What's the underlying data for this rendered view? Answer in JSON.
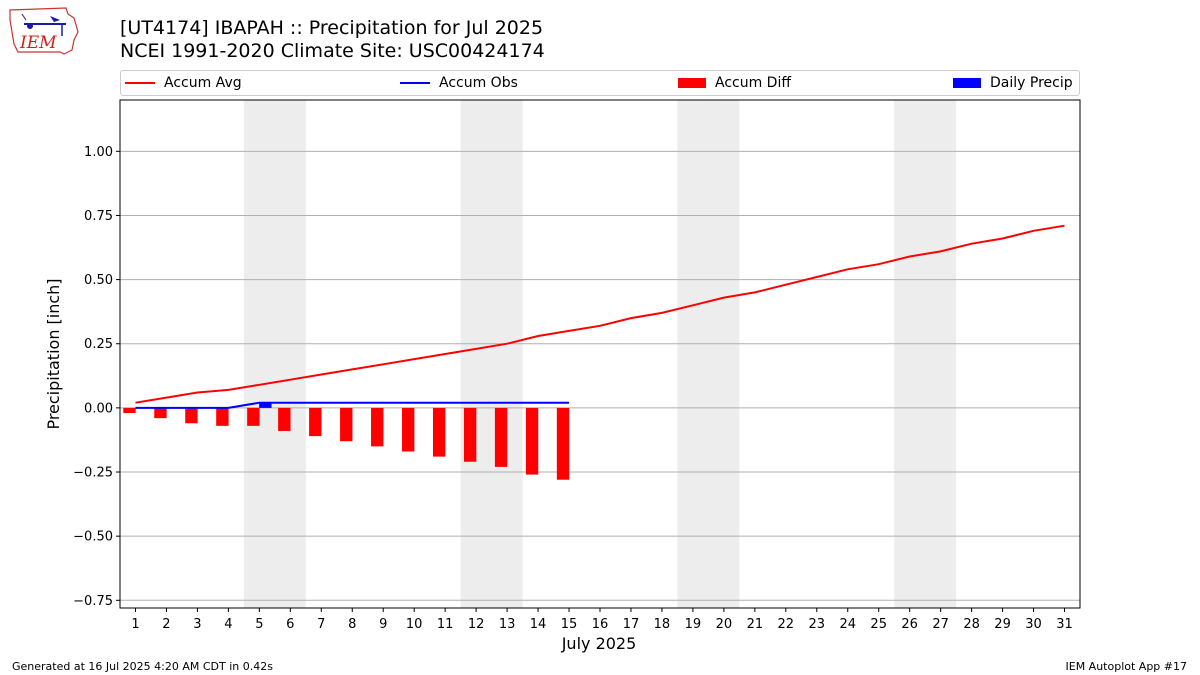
{
  "header": {
    "title_line1": "[UT4174] IBAPAH :: Precipitation for Jul 2025",
    "title_line2": "NCEI 1991-2020 Climate Site: USC00424174",
    "logo_text": "IEM"
  },
  "footer": {
    "left": "Generated at 16 Jul 2025 4:20 AM CDT in 0.42s",
    "right": "IEM Autoplot App #17"
  },
  "legend": {
    "accum_avg": "Accum Avg",
    "accum_obs": "Accum Obs",
    "accum_diff": "Accum Diff",
    "daily_precip": "Daily Precip"
  },
  "colors": {
    "accum_avg": "#ff0000",
    "accum_obs": "#0000ff",
    "accum_diff": "#ff0000",
    "daily_precip": "#0000ff",
    "weekend_band": "#ededed",
    "grid": "#b0b0b0"
  },
  "chart_data": {
    "type": "bar",
    "xlabel": "July 2025",
    "ylabel": "Precipitation [inch]",
    "ylim": [
      -0.78,
      1.2
    ],
    "xlim": [
      0.5,
      31.5
    ],
    "yticks": [
      -0.75,
      -0.5,
      -0.25,
      0.0,
      0.25,
      0.5,
      0.75,
      1.0
    ],
    "ytick_labels": [
      "−0.75",
      "−0.50",
      "−0.25",
      "0.00",
      "0.25",
      "0.50",
      "0.75",
      "1.00"
    ],
    "x": [
      1,
      2,
      3,
      4,
      5,
      6,
      7,
      8,
      9,
      10,
      11,
      12,
      13,
      14,
      15,
      16,
      17,
      18,
      19,
      20,
      21,
      22,
      23,
      24,
      25,
      26,
      27,
      28,
      29,
      30,
      31
    ],
    "weekend_bands": [
      [
        4.5,
        6.5
      ],
      [
        11.5,
        13.5
      ],
      [
        18.5,
        20.5
      ],
      [
        25.5,
        27.5
      ]
    ],
    "grid": "y",
    "legend_position": "top",
    "series": [
      {
        "name": "Accum Avg",
        "type": "line",
        "x": [
          1,
          2,
          3,
          4,
          5,
          6,
          7,
          8,
          9,
          10,
          11,
          12,
          13,
          14,
          15,
          16,
          17,
          18,
          19,
          20,
          21,
          22,
          23,
          24,
          25,
          26,
          27,
          28,
          29,
          30,
          31
        ],
        "values": [
          0.02,
          0.04,
          0.06,
          0.07,
          0.09,
          0.11,
          0.13,
          0.15,
          0.17,
          0.19,
          0.21,
          0.23,
          0.25,
          0.28,
          0.3,
          0.32,
          0.35,
          0.37,
          0.4,
          0.43,
          0.45,
          0.48,
          0.51,
          0.54,
          0.56,
          0.59,
          0.61,
          0.64,
          0.66,
          0.69,
          0.71
        ]
      },
      {
        "name": "Accum Obs",
        "type": "line",
        "x": [
          1,
          2,
          3,
          4,
          5,
          6,
          7,
          8,
          9,
          10,
          11,
          12,
          13,
          14,
          15
        ],
        "values": [
          0.0,
          0.0,
          0.0,
          0.0,
          0.02,
          0.02,
          0.02,
          0.02,
          0.02,
          0.02,
          0.02,
          0.02,
          0.02,
          0.02,
          0.02
        ]
      },
      {
        "name": "Accum Diff",
        "type": "bar",
        "x": [
          1,
          2,
          3,
          4,
          5,
          6,
          7,
          8,
          9,
          10,
          11,
          12,
          13,
          14,
          15
        ],
        "values": [
          -0.02,
          -0.04,
          -0.06,
          -0.07,
          -0.07,
          -0.09,
          -0.11,
          -0.13,
          -0.15,
          -0.17,
          -0.19,
          -0.21,
          -0.23,
          -0.26,
          -0.28
        ]
      },
      {
        "name": "Daily Precip",
        "type": "bar",
        "x": [
          5
        ],
        "values": [
          0.02
        ]
      }
    ]
  }
}
